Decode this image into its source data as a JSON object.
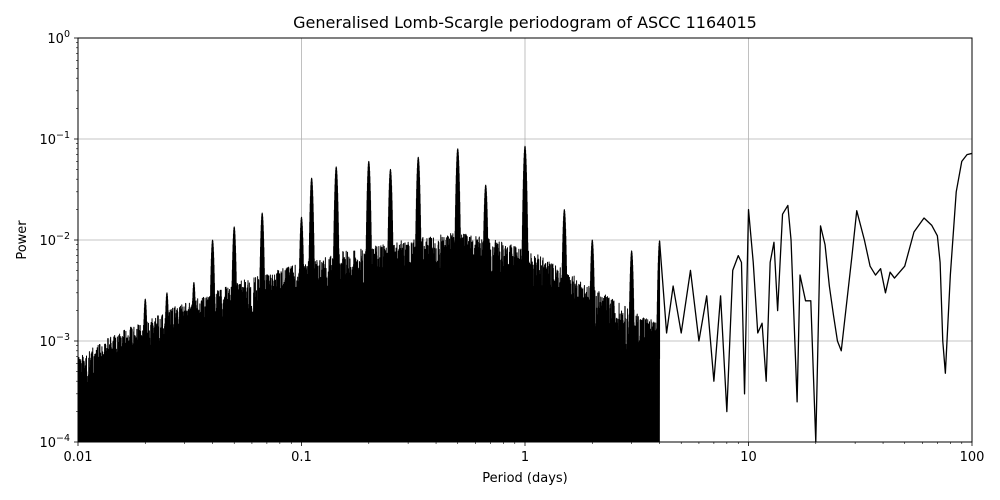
{
  "chart_data": {
    "type": "line",
    "title": "Generalised Lomb-Scargle periodogram of ASCC 1164015",
    "xlabel": "Period (days)",
    "ylabel": "Power",
    "xscale": "log",
    "yscale": "log",
    "xlim": [
      0.01,
      100
    ],
    "ylim": [
      0.0001,
      1
    ],
    "grid": true,
    "line_color": "#000000",
    "x_ticks": [
      {
        "value": 0.01,
        "label": "0.01"
      },
      {
        "value": 0.1,
        "label": "0.1"
      },
      {
        "value": 1,
        "label": "1"
      },
      {
        "value": 10,
        "label": "10"
      },
      {
        "value": 100,
        "label": "100"
      }
    ],
    "y_ticks": [
      {
        "value": 0.0001,
        "base": "10",
        "exp": "−4"
      },
      {
        "value": 0.001,
        "base": "10",
        "exp": "−3"
      },
      {
        "value": 0.01,
        "base": "10",
        "exp": "−2"
      },
      {
        "value": 0.1,
        "base": "10",
        "exp": "−1"
      },
      {
        "value": 1,
        "base": "10",
        "exp": "0"
      }
    ],
    "envelope": [
      [
        0.01,
        0.0004
      ],
      [
        0.013,
        0.0006
      ],
      [
        0.017,
        0.0008
      ],
      [
        0.02,
        0.0009
      ],
      [
        0.025,
        0.0012
      ],
      [
        0.03,
        0.0014
      ],
      [
        0.04,
        0.0018
      ],
      [
        0.05,
        0.0022
      ],
      [
        0.07,
        0.0028
      ],
      [
        0.1,
        0.0035
      ],
      [
        0.15,
        0.0045
      ],
      [
        0.2,
        0.005
      ],
      [
        0.3,
        0.006
      ],
      [
        0.4,
        0.0065
      ],
      [
        0.5,
        0.007
      ],
      [
        0.7,
        0.006
      ],
      [
        1.0,
        0.005
      ],
      [
        1.5,
        0.003
      ],
      [
        2.0,
        0.002
      ],
      [
        3.0,
        0.0012
      ],
      [
        5.0,
        0.0007
      ],
      [
        10.0,
        0.0004
      ]
    ],
    "peaks": [
      [
        0.02,
        0.0026
      ],
      [
        0.025,
        0.003
      ],
      [
        0.033,
        0.0038
      ],
      [
        0.04,
        0.01
      ],
      [
        0.05,
        0.0135
      ],
      [
        0.0667,
        0.0185
      ],
      [
        0.1,
        0.0168
      ],
      [
        0.111,
        0.041
      ],
      [
        0.143,
        0.053
      ],
      [
        0.2,
        0.06
      ],
      [
        0.25,
        0.05
      ],
      [
        0.333,
        0.066
      ],
      [
        0.5,
        0.08
      ],
      [
        0.667,
        0.035
      ],
      [
        1.0,
        0.085
      ],
      [
        1.5,
        0.02
      ],
      [
        2.0,
        0.01
      ],
      [
        3.0,
        0.0078
      ],
      [
        4.0,
        0.0098
      ]
    ],
    "smooth_curve": [
      [
        4.0,
        0.0098
      ],
      [
        4.3,
        0.0012
      ],
      [
        4.6,
        0.0035
      ],
      [
        5.0,
        0.0012
      ],
      [
        5.5,
        0.005
      ],
      [
        6.0,
        0.001
      ],
      [
        6.5,
        0.0028
      ],
      [
        7.0,
        0.0004
      ],
      [
        7.5,
        0.0028
      ],
      [
        8.0,
        0.0002
      ],
      [
        8.5,
        0.005
      ],
      [
        9.0,
        0.007
      ],
      [
        9.3,
        0.006
      ],
      [
        9.6,
        0.0003
      ],
      [
        10.0,
        0.02
      ],
      [
        10.5,
        0.006
      ],
      [
        11.0,
        0.0012
      ],
      [
        11.5,
        0.0015
      ],
      [
        12.0,
        0.0004
      ],
      [
        12.5,
        0.006
      ],
      [
        13.0,
        0.0095
      ],
      [
        13.5,
        0.002
      ],
      [
        14.2,
        0.018
      ],
      [
        15.0,
        0.022
      ],
      [
        15.5,
        0.01
      ],
      [
        16.5,
        0.00025
      ],
      [
        17.0,
        0.0045
      ],
      [
        18.0,
        0.0025
      ],
      [
        19.0,
        0.0025
      ],
      [
        20.0,
        0.0001
      ],
      [
        21.0,
        0.0138
      ],
      [
        22.0,
        0.009
      ],
      [
        23.0,
        0.0035
      ],
      [
        24.0,
        0.0018
      ],
      [
        25.0,
        0.001
      ],
      [
        26.0,
        0.0008
      ],
      [
        29.0,
        0.0068
      ],
      [
        30.5,
        0.0195
      ],
      [
        33.0,
        0.01
      ],
      [
        35.0,
        0.0055
      ],
      [
        37.0,
        0.0045
      ],
      [
        39.0,
        0.0052
      ],
      [
        41.0,
        0.003
      ],
      [
        43.0,
        0.0048
      ],
      [
        45.0,
        0.0042
      ],
      [
        50.0,
        0.0055
      ],
      [
        55.0,
        0.012
      ],
      [
        61.0,
        0.0165
      ],
      [
        66.0,
        0.014
      ],
      [
        70.0,
        0.011
      ],
      [
        72.0,
        0.006
      ],
      [
        74.0,
        0.001
      ],
      [
        76.0,
        0.00048
      ],
      [
        80.0,
        0.0045
      ],
      [
        85.0,
        0.03
      ],
      [
        90.0,
        0.06
      ],
      [
        95.0,
        0.07
      ],
      [
        100.0,
        0.072
      ]
    ]
  }
}
